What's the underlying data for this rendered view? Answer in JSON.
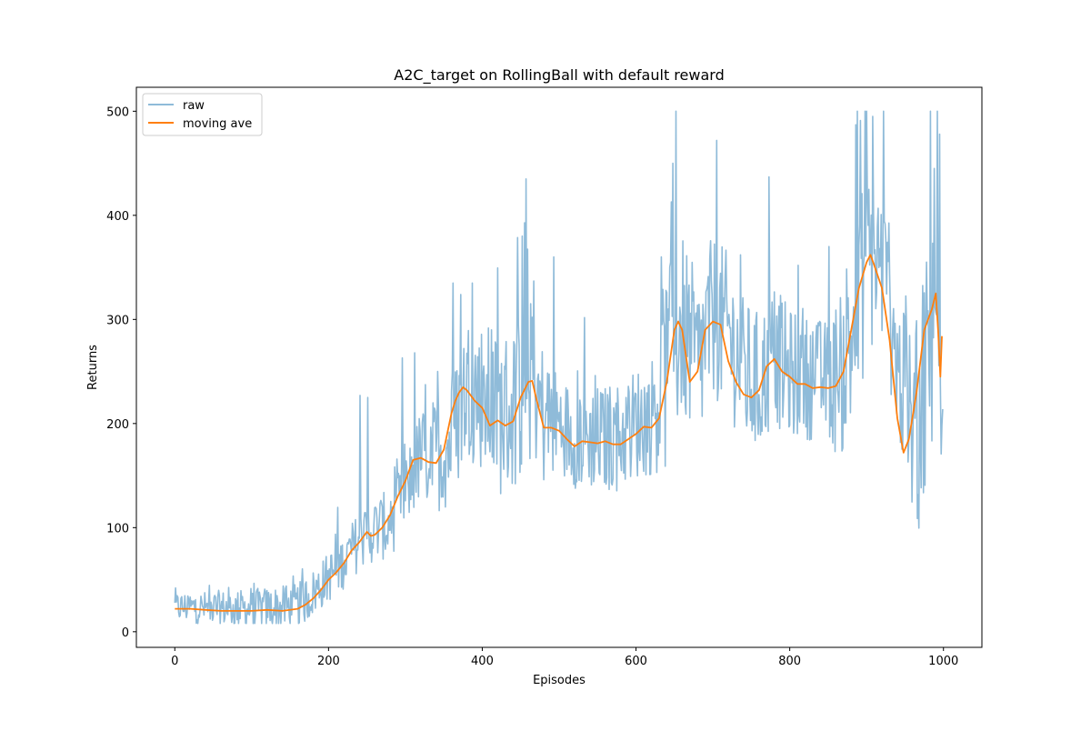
{
  "chart_data": {
    "type": "line",
    "title": "A2C_target on RollingBall with default reward",
    "xlabel": "Episodes",
    "ylabel": "Returns",
    "xlim": [
      -50,
      1050
    ],
    "ylim": [
      -15,
      523
    ],
    "xticks": [
      0,
      200,
      400,
      600,
      800,
      1000
    ],
    "yticks": [
      0,
      100,
      200,
      300,
      400,
      500
    ],
    "grid": false,
    "legend_position": "top-left",
    "series": [
      {
        "name": "raw",
        "color": "#1f77b4",
        "opacity": 0.5,
        "anchors_x": [
          0,
          20,
          40,
          60,
          80,
          100,
          120,
          140,
          160,
          180,
          200,
          220,
          240,
          260,
          280,
          300,
          320,
          340,
          360,
          380,
          400,
          420,
          440,
          460,
          480,
          500,
          520,
          540,
          560,
          580,
          600,
          620,
          640,
          660,
          680,
          700,
          720,
          740,
          760,
          780,
          800,
          820,
          840,
          860,
          880,
          900,
          920,
          940,
          960,
          980,
          1000
        ],
        "anchors_y": [
          22,
          22,
          21,
          21,
          20,
          20,
          21,
          21,
          22,
          35,
          50,
          65,
          85,
          95,
          100,
          130,
          165,
          165,
          175,
          230,
          220,
          200,
          205,
          240,
          200,
          195,
          182,
          182,
          180,
          183,
          195,
          200,
          240,
          285,
          245,
          295,
          280,
          240,
          230,
          260,
          240,
          238,
          238,
          236,
          270,
          350,
          345,
          250,
          175,
          240,
          280
        ],
        "spikes": [
          [
            241,
            227
          ],
          [
            251,
            225
          ],
          [
            270,
            120
          ],
          [
            296,
            263
          ],
          [
            312,
            268
          ],
          [
            342,
            250
          ],
          [
            362,
            335
          ],
          [
            372,
            324
          ],
          [
            387,
            335
          ],
          [
            412,
            290
          ],
          [
            452,
            380
          ],
          [
            457,
            435
          ],
          [
            467,
            337
          ],
          [
            493,
            360
          ],
          [
            633,
            360
          ],
          [
            648,
            450
          ],
          [
            652,
            500
          ],
          [
            705,
            472
          ],
          [
            736,
            362
          ],
          [
            773,
            437
          ],
          [
            811,
            352
          ],
          [
            851,
            370
          ],
          [
            886,
            487
          ],
          [
            898,
            500
          ],
          [
            908,
            495
          ],
          [
            922,
            500
          ],
          [
            952,
            292
          ],
          [
            983,
            500
          ],
          [
            988,
            445
          ],
          [
            992,
            500
          ],
          [
            995,
            478
          ]
        ],
        "noise_amplitude": [
          [
            0,
            18
          ],
          [
            200,
            30
          ],
          [
            300,
            45
          ],
          [
            360,
            80
          ],
          [
            460,
            110
          ],
          [
            500,
            60
          ],
          [
            620,
            70
          ],
          [
            640,
            120
          ],
          [
            700,
            100
          ],
          [
            850,
            70
          ],
          [
            880,
            140
          ],
          [
            940,
            80
          ],
          [
            980,
            180
          ]
        ]
      },
      {
        "name": "moving ave",
        "color": "#ff7f0e",
        "x": [
          0,
          20,
          40,
          60,
          80,
          100,
          120,
          140,
          160,
          170,
          180,
          190,
          200,
          210,
          220,
          230,
          240,
          250,
          255,
          260,
          270,
          280,
          290,
          300,
          310,
          320,
          330,
          340,
          350,
          360,
          365,
          370,
          375,
          380,
          390,
          400,
          410,
          420,
          430,
          440,
          450,
          460,
          465,
          470,
          480,
          490,
          500,
          510,
          520,
          530,
          540,
          550,
          560,
          570,
          580,
          590,
          600,
          610,
          620,
          630,
          640,
          650,
          655,
          660,
          670,
          680,
          690,
          700,
          710,
          720,
          730,
          740,
          750,
          760,
          770,
          780,
          790,
          800,
          810,
          820,
          830,
          840,
          850,
          860,
          870,
          880,
          890,
          900,
          905,
          910,
          920,
          930,
          940,
          948,
          955,
          965,
          975,
          985,
          990,
          993,
          996,
          998
        ],
        "y": [
          22,
          22,
          21,
          20,
          20,
          20,
          21,
          20,
          22,
          26,
          32,
          40,
          50,
          57,
          66,
          78,
          86,
          96,
          92,
          93,
          100,
          112,
          130,
          145,
          165,
          167,
          163,
          162,
          175,
          210,
          222,
          230,
          235,
          232,
          222,
          215,
          198,
          203,
          198,
          202,
          225,
          240,
          241,
          225,
          196,
          196,
          193,
          185,
          178,
          183,
          182,
          181,
          183,
          180,
          180,
          185,
          190,
          197,
          196,
          205,
          240,
          290,
          298,
          290,
          240,
          250,
          290,
          298,
          295,
          260,
          240,
          228,
          225,
          232,
          255,
          262,
          250,
          245,
          238,
          238,
          234,
          235,
          234,
          236,
          250,
          290,
          330,
          355,
          362,
          352,
          330,
          280,
          205,
          172,
          185,
          230,
          290,
          310,
          325,
          290,
          245,
          284
        ]
      }
    ]
  }
}
